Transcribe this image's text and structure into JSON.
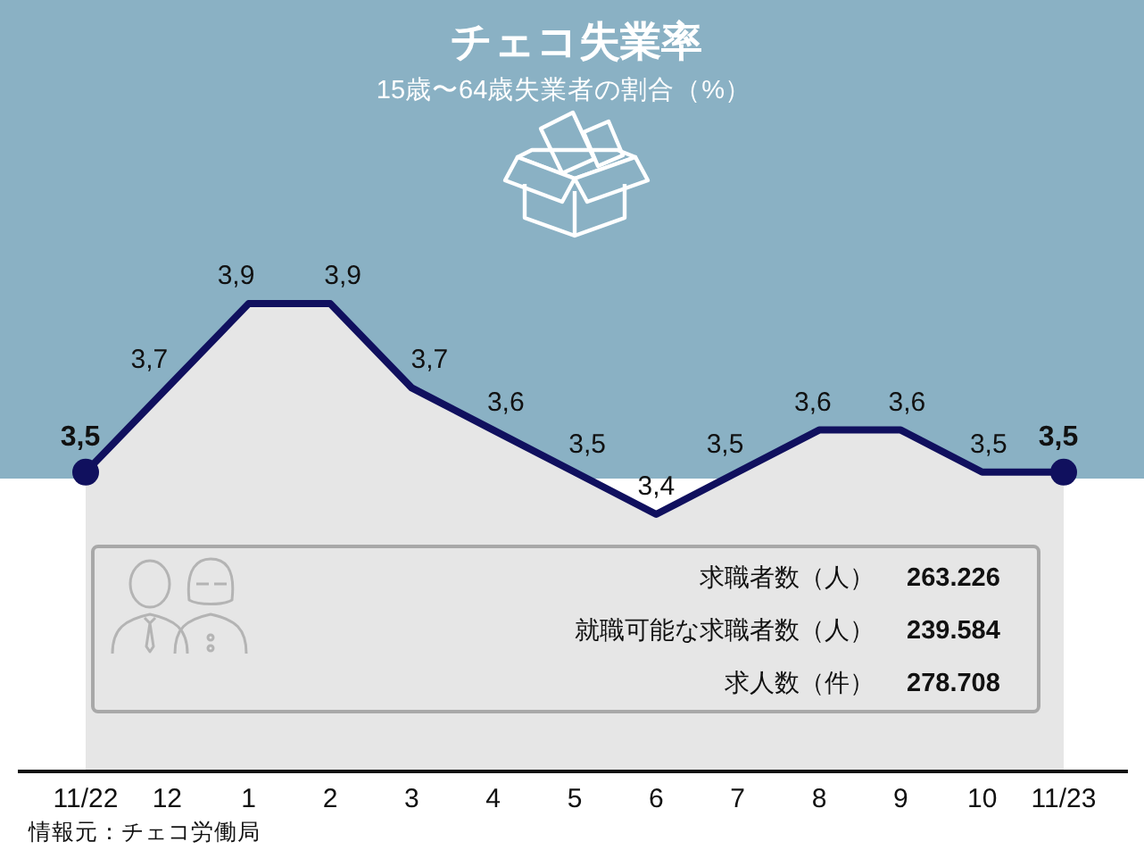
{
  "chart_data": {
    "type": "area",
    "title": "チェコ失業率",
    "subtitle": "15歳〜64歳失業者の割合（%）",
    "categories": [
      "11/22",
      "12",
      "1",
      "2",
      "3",
      "4",
      "5",
      "6",
      "7",
      "8",
      "9",
      "10",
      "11/23"
    ],
    "tick_labels": "x",
    "series": [
      {
        "color": "#10105e",
        "values": [
          3.5,
          3.7,
          3.9,
          3.9,
          3.7,
          3.6,
          3.5,
          3.4,
          3.5,
          3.6,
          3.6,
          3.5,
          3.5
        ],
        "value_labels": [
          null,
          "3,7",
          "3,9",
          "3,9",
          "3,7",
          "3,6",
          "3,5",
          "3,4",
          "3,5",
          "3,6",
          "3,6",
          "3,5",
          null
        ]
      },
      {
        "type": "scatter",
        "color": "#10105e",
        "marker": "circle",
        "values": [
          3.5,
          null,
          null,
          null,
          null,
          null,
          null,
          null,
          null,
          null,
          null,
          null,
          3.5
        ],
        "value_labels": [
          "3,5",
          null,
          null,
          null,
          null,
          null,
          null,
          null,
          null,
          null,
          null,
          null,
          "3,5"
        ]
      }
    ],
    "annotations": [
      "求職者数（人）",
      "263.226",
      "就職可能な求職者数（人）",
      "239.584",
      "求人数（件）",
      "278.708",
      "情報元：チェコ労働局"
    ]
  }
}
